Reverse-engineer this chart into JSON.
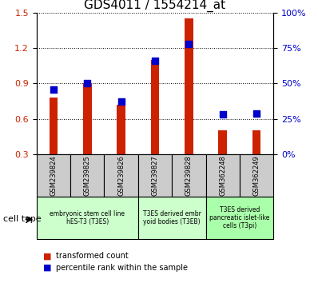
{
  "title": "GDS4011 / 1554214_at",
  "samples": [
    "GSM239824",
    "GSM239825",
    "GSM239826",
    "GSM239827",
    "GSM239828",
    "GSM362248",
    "GSM362249"
  ],
  "transformed_count": [
    0.78,
    0.9,
    0.72,
    1.1,
    1.45,
    0.5,
    0.5
  ],
  "percentile_rank_pct": [
    46,
    50,
    37,
    66,
    78,
    28,
    29
  ],
  "ylim_left": [
    0.3,
    1.5
  ],
  "ylim_right": [
    0,
    100
  ],
  "yticks_left": [
    0.3,
    0.6,
    0.9,
    1.2,
    1.5
  ],
  "yticks_right": [
    0,
    25,
    50,
    75,
    100
  ],
  "ytick_labels_right": [
    "0%",
    "25%",
    "50%",
    "75%",
    "100%"
  ],
  "bar_color": "#cc2200",
  "dot_color": "#0000cc",
  "groups": [
    {
      "label": "embryonic stem cell line\nhES-T3 (T3ES)",
      "cols": 3,
      "color": "#ccffcc"
    },
    {
      "label": "T3ES derived embr\nyoid bodies (T3EB)",
      "cols": 2,
      "color": "#ccffcc"
    },
    {
      "label": "T3ES derived\npancreatic islet-like\ncells (T3pi)",
      "cols": 2,
      "color": "#aaffaa"
    }
  ],
  "bar_width": 0.25,
  "dot_size": 40,
  "cell_type_label": "cell type",
  "legend_bar_label": "transformed count",
  "legend_dot_label": "percentile rank within the sample",
  "bg_color_plot": "#ffffff",
  "bg_color_xtick": "#cccccc",
  "title_fontsize": 11,
  "tick_fontsize": 8,
  "label_fontsize": 7
}
